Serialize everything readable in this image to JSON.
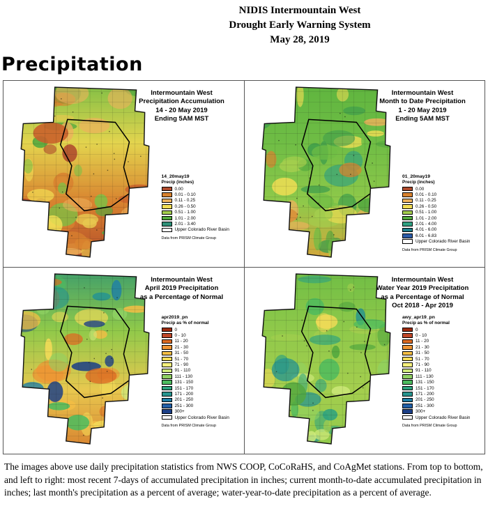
{
  "header": {
    "line1": "NIDIS Intermountain West",
    "line2": "Drought Early Warning System",
    "line3": "May 28, 2019"
  },
  "section_title": "Precipitation",
  "panels": [
    {
      "title_lines": [
        "Intermountain West",
        "Precipitation Accumulation",
        "14 - 20 May 2019",
        "Ending 5AM MST"
      ],
      "legend_name": "14_20may19",
      "legend_label": "Precip (inches)",
      "legend_entries": [
        {
          "label": "0.00",
          "color": "#AE4A2C"
        },
        {
          "label": "0.01 - 0.10",
          "color": "#D8822F"
        },
        {
          "label": "0.11 - 0.25",
          "color": "#EDB25C"
        },
        {
          "label": "0.26 - 0.50",
          "color": "#F2DE54"
        },
        {
          "label": "0.51 - 1.00",
          "color": "#A4CE4E"
        },
        {
          "label": "1.01 - 2.00",
          "color": "#53A83F"
        },
        {
          "label": "2.01 - 3.40",
          "color": "#2E8F77"
        }
      ],
      "basin_label": "Upper Colorado River Basin",
      "source": "Data from PRISM Climate Group",
      "map_palette": {
        "gradient": [
          "#7FBF45",
          "#E3D44E",
          "#D8822F",
          "#B24A2A"
        ],
        "blobs": [
          "#AE4A2C",
          "#D8822F",
          "#EDB25C",
          "#F2DE54",
          "#7FBF45",
          "#53A83F",
          "#E8C84F",
          "#C95F2B"
        ]
      }
    },
    {
      "title_lines": [
        "Intermountain West",
        "Month to Date Precipitation",
        "1 - 20 May 2019",
        "Ending 5AM MST"
      ],
      "legend_name": "01_20may19",
      "legend_label": "Precip (inches)",
      "legend_entries": [
        {
          "label": "0.00",
          "color": "#AE4A2C"
        },
        {
          "label": "0.01 - 0.10",
          "color": "#D8822F"
        },
        {
          "label": "0.11 - 0.25",
          "color": "#EDB25C"
        },
        {
          "label": "0.26 - 0.50",
          "color": "#F2DE54"
        },
        {
          "label": "0.51 - 1.00",
          "color": "#A4CE4E"
        },
        {
          "label": "1.01 - 2.00",
          "color": "#53A83F"
        },
        {
          "label": "2.01 - 4.00",
          "color": "#2FA081"
        },
        {
          "label": "4.01 - 6.00",
          "color": "#1F7F8C"
        },
        {
          "label": "6.01 - 6.83",
          "color": "#2B5BA8"
        }
      ],
      "basin_label": "Upper Colorado River Basin",
      "source": "Data from PRISM Climate Group",
      "map_palette": {
        "gradient": [
          "#5FB53F",
          "#6FBD45",
          "#8FC94A",
          "#D8A43A"
        ],
        "blobs": [
          "#53A83F",
          "#A4CE4E",
          "#F2DE54",
          "#2FA081",
          "#6FBD45",
          "#EDB25C",
          "#D8822F",
          "#3F9E4B"
        ]
      }
    },
    {
      "title_lines": [
        "Intermountain West",
        "April 2019 Precipitation",
        "as a Percentage of Normal"
      ],
      "legend_name": "apr2019_pn",
      "legend_label": "Precip as % of normal",
      "legend_entries": [
        {
          "label": "0",
          "color": "#9E2B0E"
        },
        {
          "label": "0 - 10",
          "color": "#C0482A"
        },
        {
          "label": "11 - 20",
          "color": "#DC6B23"
        },
        {
          "label": "21 - 30",
          "color": "#EE9433"
        },
        {
          "label": "31 - 50",
          "color": "#F5BE45"
        },
        {
          "label": "51 - 70",
          "color": "#F4DB58"
        },
        {
          "label": "71 - 90",
          "color": "#F7F07E"
        },
        {
          "label": "91 - 110",
          "color": "#CFE97C"
        },
        {
          "label": "111 - 130",
          "color": "#8FD163"
        },
        {
          "label": "131 - 150",
          "color": "#4DBB5E"
        },
        {
          "label": "151 - 170",
          "color": "#2FA37E"
        },
        {
          "label": "171 - 200",
          "color": "#27948F"
        },
        {
          "label": "201 - 250",
          "color": "#1F7FA6"
        },
        {
          "label": "251 - 300",
          "color": "#2260A8"
        },
        {
          "label": "300+",
          "color": "#1B3F87"
        }
      ],
      "basin_label": "Upper Colorado River Basin",
      "source": "Data from PRISM Climate Group",
      "map_palette": {
        "gradient": [
          "#3F9E6B",
          "#8FC94A",
          "#E8C84F",
          "#D8822F"
        ],
        "blobs": [
          "#1B3F87",
          "#1F7FA6",
          "#27948F",
          "#4DBB5E",
          "#8FD163",
          "#F5BE45",
          "#EE9433",
          "#DC6B23",
          "#F4DB58",
          "#CFE97C"
        ]
      }
    },
    {
      "title_lines": [
        "Intermountain West",
        "Water Year 2019 Precipitation",
        "as a Percentage of Normal",
        "Oct 2018 - Apr 2019"
      ],
      "legend_name": "awy_apr19_pn",
      "legend_label": "Precip as % of normal",
      "legend_entries": [
        {
          "label": "0",
          "color": "#9E2B0E"
        },
        {
          "label": "0 - 10",
          "color": "#C0482A"
        },
        {
          "label": "11 - 20",
          "color": "#DC6B23"
        },
        {
          "label": "21 - 30",
          "color": "#EE9433"
        },
        {
          "label": "31 - 50",
          "color": "#F5BE45"
        },
        {
          "label": "51 - 70",
          "color": "#F4DB58"
        },
        {
          "label": "71 - 90",
          "color": "#F7F07E"
        },
        {
          "label": "91 - 110",
          "color": "#CFE97C"
        },
        {
          "label": "111 - 130",
          "color": "#8FD163"
        },
        {
          "label": "131 - 150",
          "color": "#4DBB5E"
        },
        {
          "label": "151 - 170",
          "color": "#2FA37E"
        },
        {
          "label": "171 - 200",
          "color": "#27948F"
        },
        {
          "label": "201 - 250",
          "color": "#1F7FA6"
        },
        {
          "label": "251 - 300",
          "color": "#2260A8"
        },
        {
          "label": "300+",
          "color": "#1B3F87"
        }
      ],
      "basin_label": "Upper Colorado River Basin",
      "source": "Data from PRISM Climate Group",
      "map_palette": {
        "gradient": [
          "#6FBD45",
          "#8FC94A",
          "#A4CE4E",
          "#8FC94A"
        ],
        "blobs": [
          "#4DBB5E",
          "#2FA37E",
          "#8FD163",
          "#CFE97C",
          "#F4DB58",
          "#27948F",
          "#A4CE4E",
          "#53A83F"
        ]
      }
    }
  ],
  "caption": "The images above use daily precipitation statistics from NWS COOP, CoCoRaHS, and CoAgMet stations. From top to bottom, and left to right: most recent 7-days of accumulated precipitation in inches; current month-to-date accumulated precipitation in inches; last month's precipitation as a percent of average; water-year-to-date precipitation as a percent of average."
}
